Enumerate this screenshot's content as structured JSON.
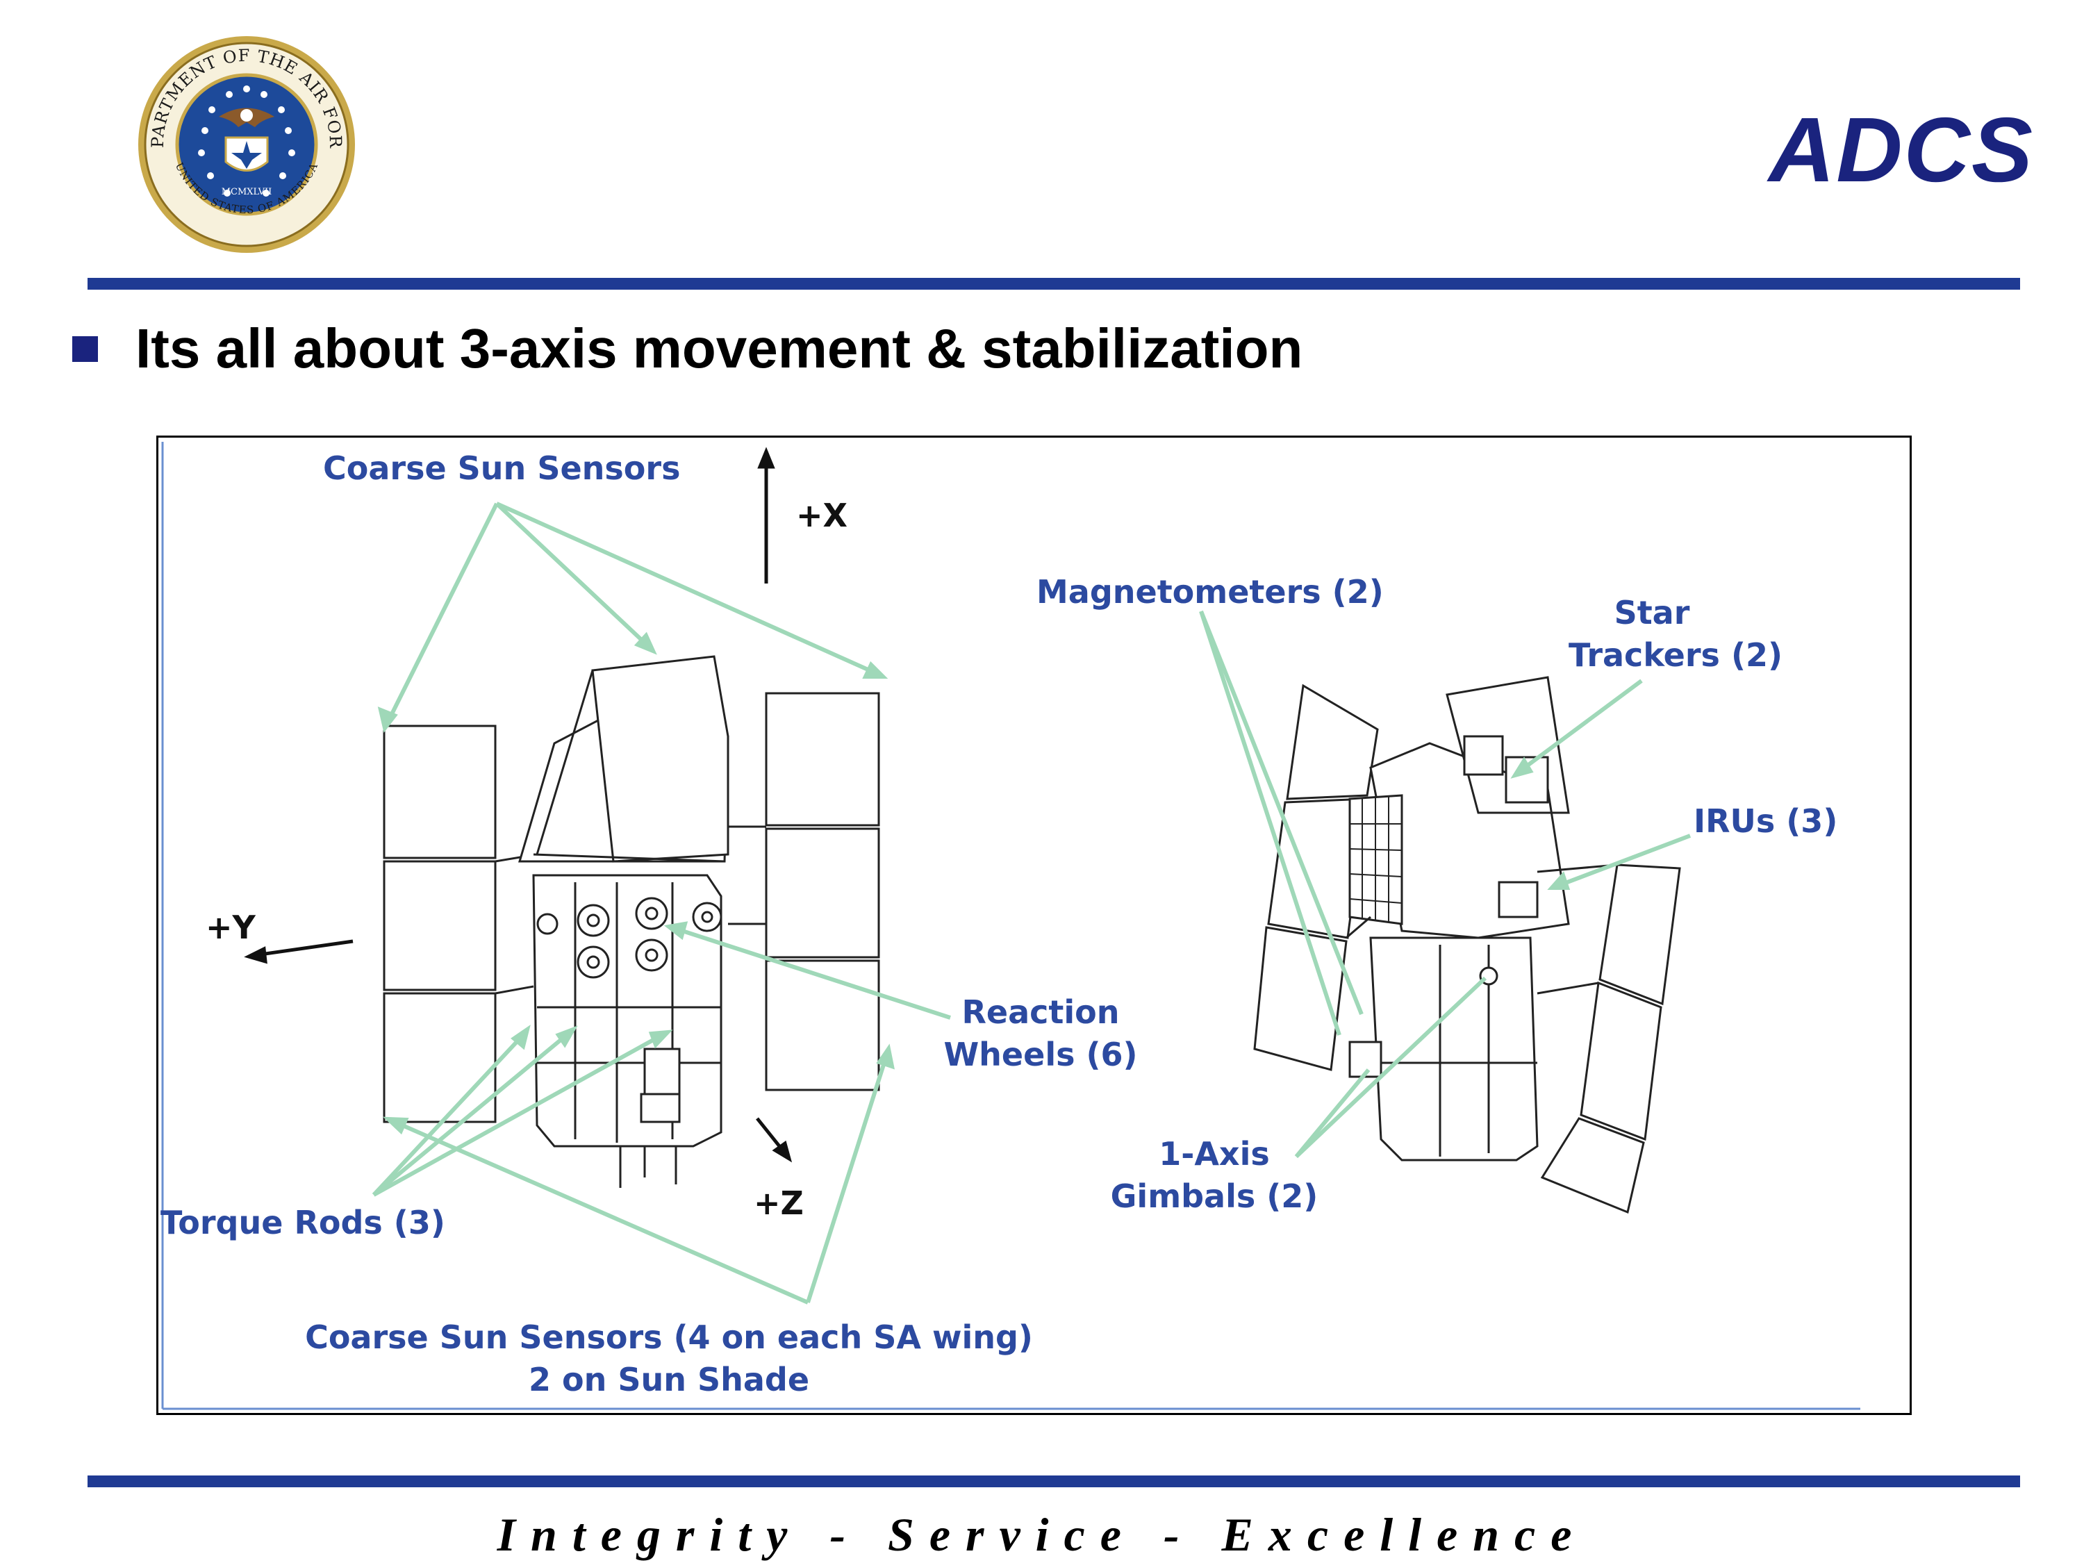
{
  "header": {
    "seal": {
      "name": "department-of-the-air-force-seal",
      "ring_text": "DEPARTMENT OF THE AIR FORCE",
      "bottom_text": "UNITED STATES OF AMERICA",
      "year_text": "MCMXLVII"
    },
    "title": "ADCS"
  },
  "bullets": [
    {
      "text": "Its all about 3-axis movement & stabilization"
    }
  ],
  "figure": {
    "labels": {
      "coarse_sun_sensors_top": "Coarse Sun Sensors",
      "magnetometers": "Magnetometers (2)",
      "star_trackers_line1": "Star",
      "star_trackers_line2": "Trackers (2)",
      "irus": "IRUs (3)",
      "reaction_wheels_line1": "Reaction",
      "reaction_wheels_line2": "Wheels (6)",
      "gimbals_line1": "1-Axis",
      "gimbals_line2": "Gimbals (2)",
      "torque_rods": "Torque Rods (3)",
      "coarse_sun_sensors_bottom_line1": "Coarse Sun Sensors (4 on each SA wing)",
      "coarse_sun_sensors_bottom_line2": "2 on Sun Shade"
    },
    "axes": {
      "x": "+X",
      "y": "+Y",
      "z": "+Z"
    },
    "colors": {
      "label": "#2c4aa0",
      "leader": "#9fd8b8",
      "drawing": "#222222"
    }
  },
  "footer": {
    "motto": "Integrity - Service - Excellence"
  },
  "colors": {
    "title": "#1a237e",
    "rule": "#1f3a93",
    "bullet": "#1a237e"
  }
}
